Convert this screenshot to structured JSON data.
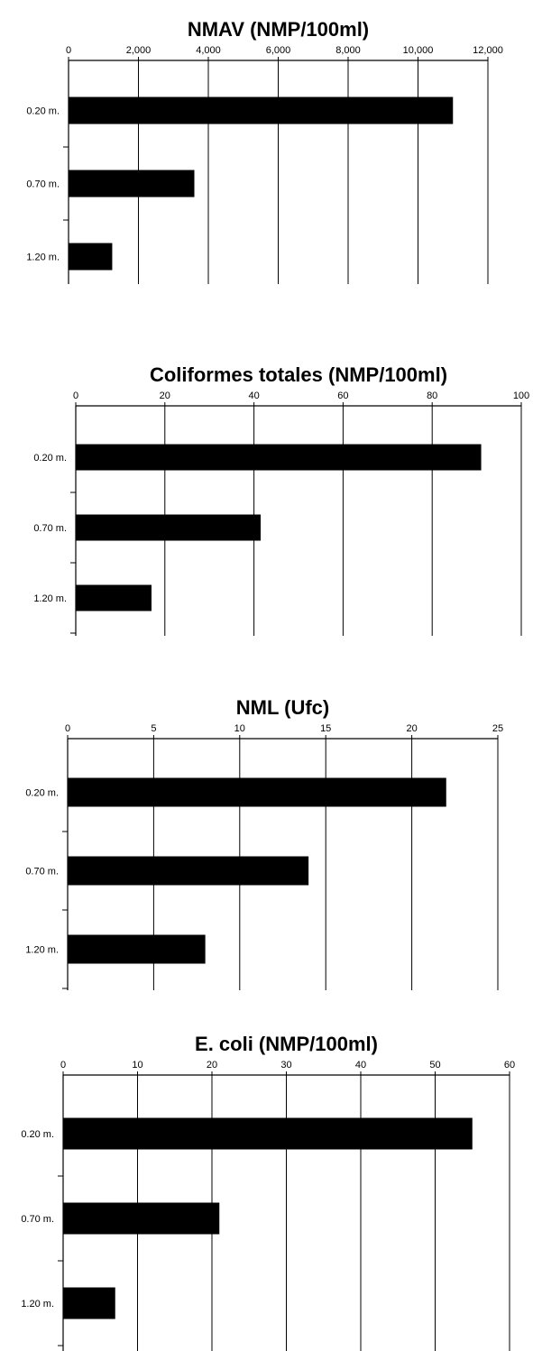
{
  "chart_data": [
    {
      "type": "bar",
      "orientation": "horizontal",
      "title": "NMAV (NMP/100ml)",
      "categories": [
        "0.20 m.",
        "0.70 m.",
        "1.20 m."
      ],
      "values": [
        11000,
        3600,
        1250
      ],
      "xlim": [
        0,
        12000
      ],
      "ticks": [
        0,
        2000,
        4000,
        6000,
        8000,
        10000,
        12000
      ],
      "tick_labels": [
        "0",
        "2,000",
        "4,000",
        "6,000",
        "8,000",
        "10,000",
        "12,000"
      ],
      "xlabel": "",
      "ylabel": "",
      "grid": true,
      "axis_position": "top",
      "bar_color": "#000000"
    },
    {
      "type": "bar",
      "orientation": "horizontal",
      "title": "Coliformes totales (NMP/100ml)",
      "categories": [
        "0.20 m.",
        "0.70 m.",
        "1.20 m."
      ],
      "values": [
        91,
        41.5,
        17
      ],
      "xlim": [
        0,
        100
      ],
      "ticks": [
        0,
        20,
        40,
        60,
        80,
        100
      ],
      "tick_labels": [
        "0",
        "20",
        "40",
        "60",
        "80",
        "100"
      ],
      "xlabel": "",
      "ylabel": "",
      "grid": true,
      "axis_position": "top",
      "bar_color": "#000000"
    },
    {
      "type": "bar",
      "orientation": "horizontal",
      "title": "NML (Ufc)",
      "categories": [
        "0.20 m.",
        "0.70 m.",
        "1.20 m."
      ],
      "values": [
        22,
        14,
        8
      ],
      "xlim": [
        0,
        25
      ],
      "ticks": [
        0,
        5,
        10,
        15,
        20,
        25
      ],
      "tick_labels": [
        "0",
        "5",
        "10",
        "15",
        "20",
        "25"
      ],
      "xlabel": "",
      "ylabel": "",
      "grid": true,
      "axis_position": "top",
      "bar_color": "#000000"
    },
    {
      "type": "bar",
      "orientation": "horizontal",
      "title": "E. coli (NMP/100ml)",
      "categories": [
        "0.20 m.",
        "0.70 m.",
        "1.20 m."
      ],
      "values": [
        55,
        21,
        7
      ],
      "xlim": [
        0,
        60
      ],
      "ticks": [
        0,
        10,
        20,
        30,
        40,
        50,
        60
      ],
      "tick_labels": [
        "0",
        "10",
        "20",
        "30",
        "40",
        "50",
        "60"
      ],
      "xlabel": "",
      "ylabel": "",
      "grid": true,
      "axis_position": "top",
      "bar_color": "#000000"
    }
  ]
}
